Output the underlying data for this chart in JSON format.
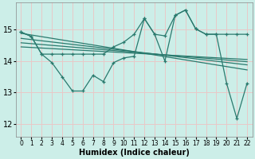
{
  "xlabel": "Humidex (Indice chaleur)",
  "bg_color": "#cceee8",
  "grid_color": "#e8c8c8",
  "line_color": "#2a7a6e",
  "xlim": [
    -0.5,
    22.5
  ],
  "ylim": [
    11.6,
    15.85
  ],
  "yticks": [
    12,
    13,
    14,
    15
  ],
  "xticks": [
    0,
    1,
    2,
    3,
    4,
    5,
    6,
    7,
    8,
    9,
    10,
    11,
    12,
    13,
    14,
    15,
    16,
    17,
    18,
    19,
    20,
    21,
    22
  ],
  "line_upper_x": [
    0,
    1,
    2,
    3,
    4,
    5,
    6,
    7,
    8,
    9,
    10,
    11,
    12,
    13,
    14,
    15,
    16,
    17,
    18,
    19,
    20,
    21,
    22
  ],
  "line_upper_y": [
    14.92,
    14.78,
    14.22,
    14.22,
    14.22,
    14.22,
    14.22,
    14.22,
    14.22,
    14.45,
    14.6,
    14.85,
    15.35,
    14.85,
    14.8,
    15.45,
    15.62,
    15.02,
    14.85,
    14.85,
    14.85,
    14.85,
    14.85
  ],
  "line_lower_x": [
    0,
    1,
    2,
    3,
    4,
    5,
    6,
    7,
    8,
    9,
    10,
    11,
    12,
    13,
    14,
    15,
    16,
    17,
    18,
    19,
    20,
    21,
    22
  ],
  "line_lower_y": [
    14.92,
    14.78,
    14.22,
    13.95,
    13.5,
    13.05,
    13.05,
    13.55,
    13.35,
    13.95,
    14.1,
    14.15,
    15.35,
    14.85,
    14.0,
    15.45,
    15.62,
    15.02,
    14.85,
    14.85,
    13.3,
    12.18,
    13.3
  ],
  "trend1_x": [
    0,
    22
  ],
  "trend1_y": [
    14.88,
    13.72
  ],
  "trend2_x": [
    0,
    22
  ],
  "trend2_y": [
    14.72,
    13.88
  ],
  "trend3_x": [
    0,
    22
  ],
  "trend3_y": [
    14.58,
    13.98
  ],
  "trend4_x": [
    0,
    22
  ],
  "trend4_y": [
    14.45,
    14.05
  ]
}
